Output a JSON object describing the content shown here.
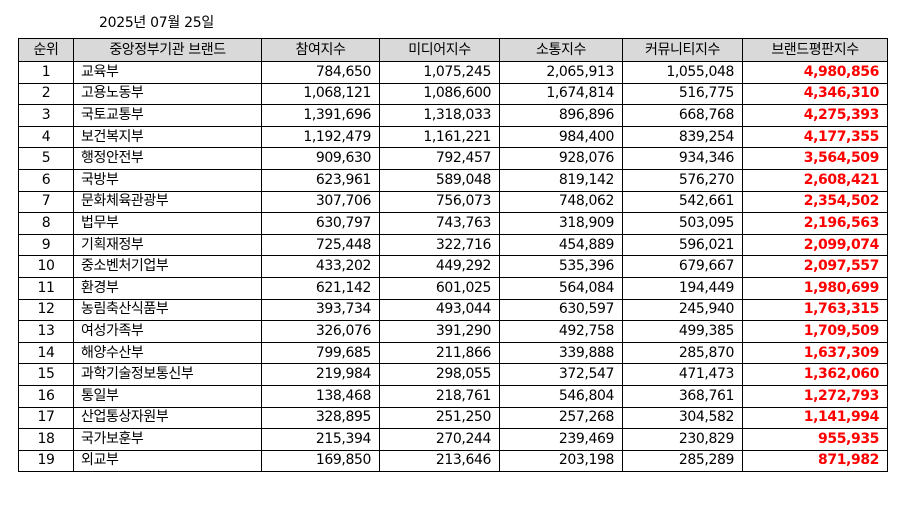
{
  "date_label": "2025년 07월 25일",
  "headers": {
    "rank": "순위",
    "name": "중앙정부기관 브랜드",
    "participation": "참여지수",
    "media": "미디어지수",
    "communication": "소통지수",
    "community": "커뮤니티지수",
    "brand_reputation": "브랜드평판지수"
  },
  "accent_color": "#ff0000",
  "header_bg": "#d9d9d9",
  "rows": [
    {
      "rank": "1",
      "name": "교육부",
      "participation": "784,650",
      "media": "1,075,245",
      "communication": "2,065,913",
      "community": "1,055,048",
      "total": "4,980,856"
    },
    {
      "rank": "2",
      "name": "고용노동부",
      "participation": "1,068,121",
      "media": "1,086,600",
      "communication": "1,674,814",
      "community": "516,775",
      "total": "4,346,310"
    },
    {
      "rank": "3",
      "name": "국토교통부",
      "participation": "1,391,696",
      "media": "1,318,033",
      "communication": "896,896",
      "community": "668,768",
      "total": "4,275,393"
    },
    {
      "rank": "4",
      "name": "보건복지부",
      "participation": "1,192,479",
      "media": "1,161,221",
      "communication": "984,400",
      "community": "839,254",
      "total": "4,177,355"
    },
    {
      "rank": "5",
      "name": "행정안전부",
      "participation": "909,630",
      "media": "792,457",
      "communication": "928,076",
      "community": "934,346",
      "total": "3,564,509"
    },
    {
      "rank": "6",
      "name": "국방부",
      "participation": "623,961",
      "media": "589,048",
      "communication": "819,142",
      "community": "576,270",
      "total": "2,608,421"
    },
    {
      "rank": "7",
      "name": "문화체육관광부",
      "participation": "307,706",
      "media": "756,073",
      "communication": "748,062",
      "community": "542,661",
      "total": "2,354,502"
    },
    {
      "rank": "8",
      "name": "법무부",
      "participation": "630,797",
      "media": "743,763",
      "communication": "318,909",
      "community": "503,095",
      "total": "2,196,563"
    },
    {
      "rank": "9",
      "name": "기획재정부",
      "participation": "725,448",
      "media": "322,716",
      "communication": "454,889",
      "community": "596,021",
      "total": "2,099,074"
    },
    {
      "rank": "10",
      "name": "중소벤처기업부",
      "participation": "433,202",
      "media": "449,292",
      "communication": "535,396",
      "community": "679,667",
      "total": "2,097,557"
    },
    {
      "rank": "11",
      "name": "환경부",
      "participation": "621,142",
      "media": "601,025",
      "communication": "564,084",
      "community": "194,449",
      "total": "1,980,699"
    },
    {
      "rank": "12",
      "name": "농림축산식품부",
      "participation": "393,734",
      "media": "493,044",
      "communication": "630,597",
      "community": "245,940",
      "total": "1,763,315"
    },
    {
      "rank": "13",
      "name": "여성가족부",
      "participation": "326,076",
      "media": "391,290",
      "communication": "492,758",
      "community": "499,385",
      "total": "1,709,509"
    },
    {
      "rank": "14",
      "name": "해양수산부",
      "participation": "799,685",
      "media": "211,866",
      "communication": "339,888",
      "community": "285,870",
      "total": "1,637,309"
    },
    {
      "rank": "15",
      "name": "과학기술정보통신부",
      "participation": "219,984",
      "media": "298,055",
      "communication": "372,547",
      "community": "471,473",
      "total": "1,362,060"
    },
    {
      "rank": "16",
      "name": "통일부",
      "participation": "138,468",
      "media": "218,761",
      "communication": "546,804",
      "community": "368,761",
      "total": "1,272,793"
    },
    {
      "rank": "17",
      "name": "산업통상자원부",
      "participation": "328,895",
      "media": "251,250",
      "communication": "257,268",
      "community": "304,582",
      "total": "1,141,994"
    },
    {
      "rank": "18",
      "name": "국가보훈부",
      "participation": "215,394",
      "media": "270,244",
      "communication": "239,469",
      "community": "230,829",
      "total": "955,935"
    },
    {
      "rank": "19",
      "name": "외교부",
      "participation": "169,850",
      "media": "213,646",
      "communication": "203,198",
      "community": "285,289",
      "total": "871,982"
    }
  ]
}
